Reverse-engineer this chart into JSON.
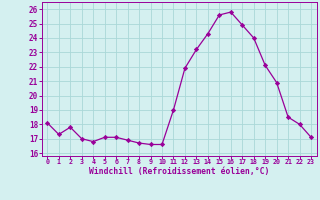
{
  "x": [
    0,
    1,
    2,
    3,
    4,
    5,
    6,
    7,
    8,
    9,
    10,
    11,
    12,
    13,
    14,
    15,
    16,
    17,
    18,
    19,
    20,
    21,
    22,
    23
  ],
  "y": [
    18.1,
    17.3,
    17.8,
    17.0,
    16.8,
    17.1,
    17.1,
    16.9,
    16.7,
    16.6,
    16.6,
    19.0,
    21.9,
    23.2,
    24.3,
    25.6,
    25.8,
    24.9,
    24.0,
    22.1,
    20.9,
    18.5,
    18.0,
    17.1
  ],
  "line_color": "#990099",
  "marker": "D",
  "marker_size": 2.2,
  "bg_color": "#d4f0f0",
  "grid_color": "#aad8d8",
  "xlabel": "Windchill (Refroidissement éolien,°C)",
  "ylabel_ticks": [
    16,
    17,
    18,
    19,
    20,
    21,
    22,
    23,
    24,
    25,
    26
  ],
  "xlim": [
    -0.5,
    23.5
  ],
  "ylim": [
    15.8,
    26.5
  ],
  "xticks": [
    0,
    1,
    2,
    3,
    4,
    5,
    6,
    7,
    8,
    9,
    10,
    11,
    12,
    13,
    14,
    15,
    16,
    17,
    18,
    19,
    20,
    21,
    22,
    23
  ],
  "axis_color": "#990099",
  "tick_color": "#990099"
}
